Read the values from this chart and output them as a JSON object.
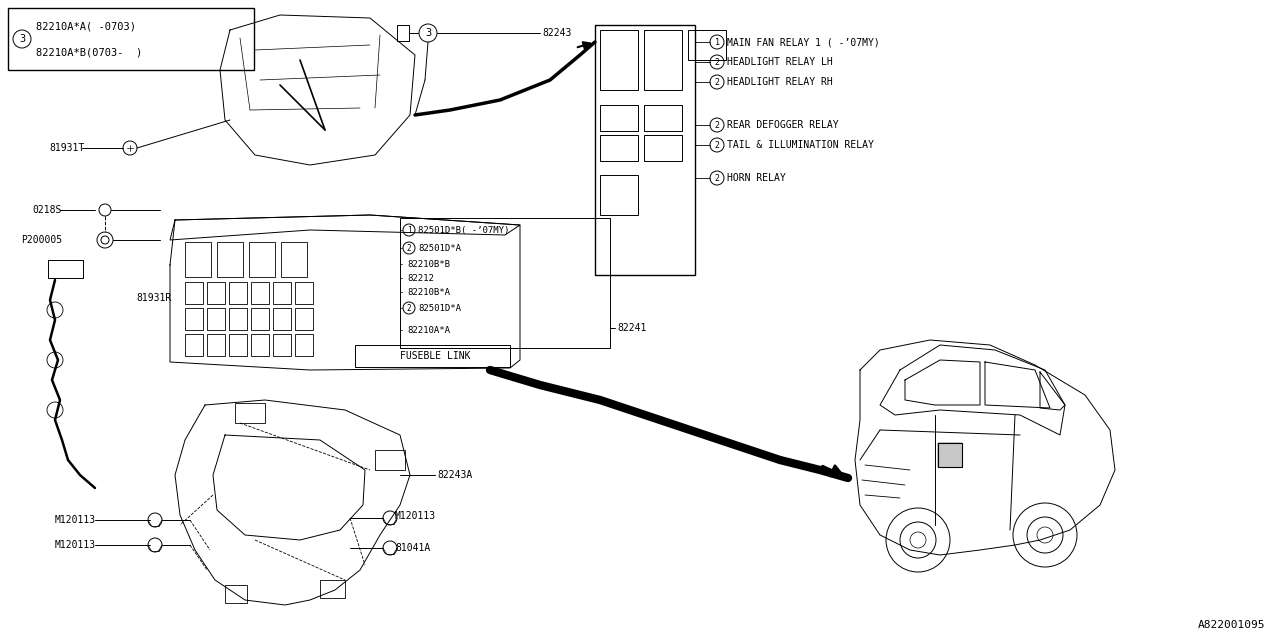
{
  "bg_color": "#ffffff",
  "line_color": "#000000",
  "watermark": "A822001095",
  "label_box": {
    "circle_num": "3",
    "line1": "82210A*A( -0703)",
    "line2": "82210A*B(0703-  )"
  },
  "fuse_box_labels": [
    {
      "num": "1",
      "text": "82501D*B( -’07MY)"
    },
    {
      "num": "2",
      "text": "82501D*A"
    },
    {
      "num": "",
      "text": "82210B*B"
    },
    {
      "num": "",
      "text": "82212"
    },
    {
      "num": "",
      "text": "82210B*A"
    },
    {
      "num": "2",
      "text": "82501D*A"
    },
    {
      "num": "",
      "text": "82210A*A"
    }
  ],
  "fuseble_link": "FUSEBLE LINK",
  "part_82241": "82241",
  "part_82243": "82243",
  "part_82243A": "82243A",
  "part_81931T": "81931T",
  "part_81931R": "81931R",
  "part_0218S": "0218S",
  "part_P200005": "P200005",
  "part_M120113": "M120113",
  "part_81041A": "81041A",
  "relay_labels": [
    {
      "num": "1",
      "text": "MAIN FAN RELAY 1 ( -’07MY)"
    },
    {
      "num": "2",
      "text": "HEADLIGHT RELAY LH"
    },
    {
      "num": "2",
      "text": "HEADLIGHT RELAY RH"
    },
    {
      "num": "2",
      "text": "REAR DEFOGGER RELAY"
    },
    {
      "num": "2",
      "text": "TAIL & ILLUMINATION RELAY"
    },
    {
      "num": "2",
      "text": "HORN RELAY"
    }
  ]
}
